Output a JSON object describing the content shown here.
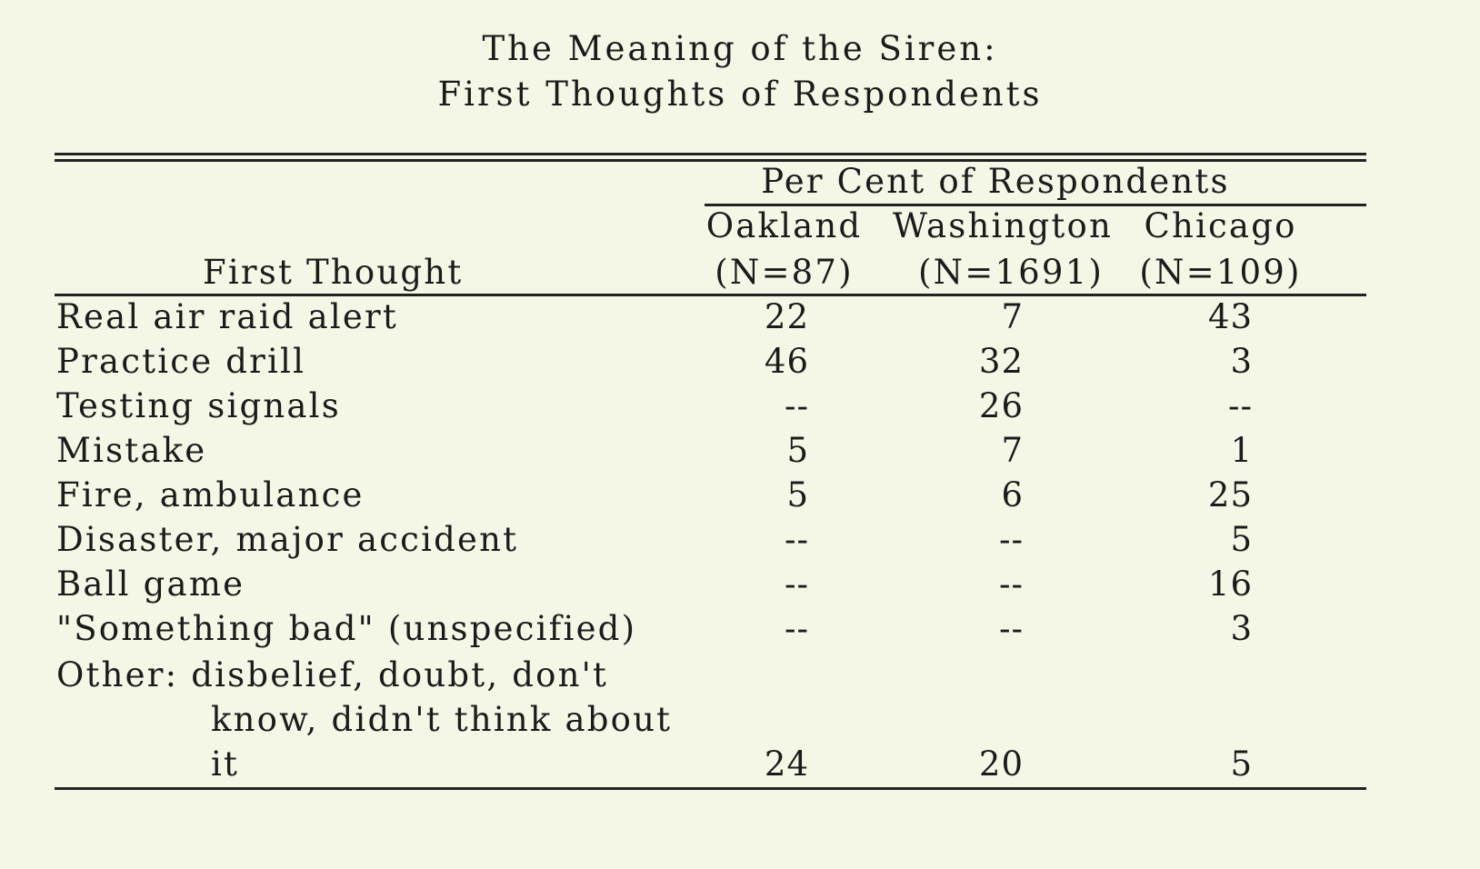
{
  "title": {
    "line1": "The Meaning of the Siren:",
    "line2": "First Thoughts of Respondents"
  },
  "table": {
    "spanner": "Per Cent of Respondents",
    "row_header": "First Thought",
    "columns": [
      {
        "name": "Oakland",
        "n": "(N=87)"
      },
      {
        "name": "Washington",
        "n": "(N=1691)"
      },
      {
        "name": "Chicago",
        "n": "(N=109)"
      }
    ],
    "rows": [
      {
        "label": "Real air raid alert",
        "values": [
          "22",
          "7",
          "43"
        ]
      },
      {
        "label": "Practice drill",
        "values": [
          "46",
          "32",
          "3"
        ]
      },
      {
        "label": "Testing signals",
        "values": [
          "--",
          "26",
          "--"
        ]
      },
      {
        "label": "Mistake",
        "values": [
          "5",
          "7",
          "1"
        ]
      },
      {
        "label": "Fire, ambulance",
        "values": [
          "5",
          "6",
          "25"
        ]
      },
      {
        "label": "Disaster, major accident",
        "values": [
          "--",
          "--",
          "5"
        ]
      },
      {
        "label": "Ball game",
        "values": [
          "--",
          "--",
          "16"
        ]
      },
      {
        "label": "\"Something bad\" (unspecified)",
        "values": [
          "--",
          "--",
          "3"
        ]
      }
    ],
    "other_row": {
      "label_line1": "Other:  disbelief, doubt, don't",
      "label_line2": "know, didn't think about",
      "label_line3": "it",
      "values": [
        "24",
        "20",
        "5"
      ]
    }
  }
}
